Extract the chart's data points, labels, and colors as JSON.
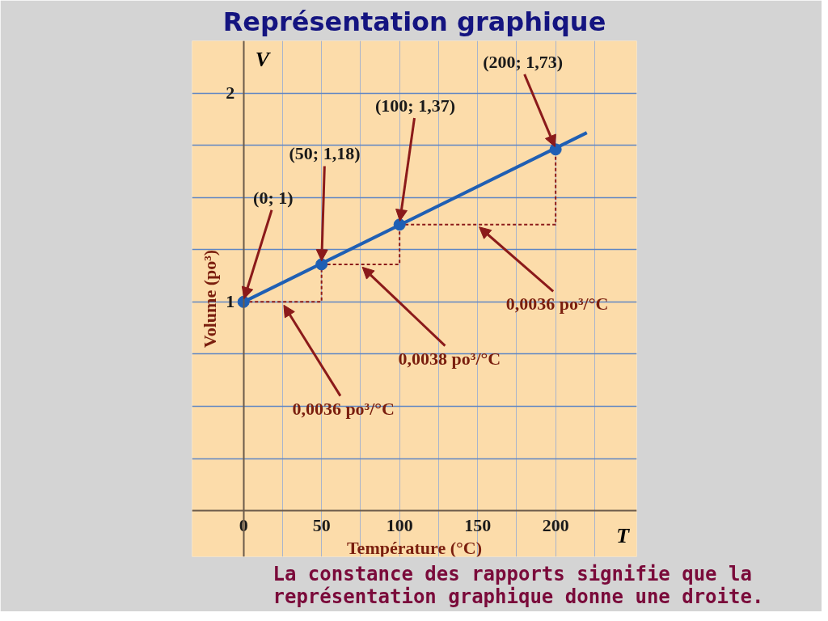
{
  "chart_data": {
    "type": "scatter",
    "title": "Représentation graphique",
    "xlabel": "Température (°C)",
    "ylabel": "Volume (po³)",
    "xlim": [
      -33,
      252
    ],
    "ylim": [
      -0.22,
      2.25
    ],
    "xticks": [
      0,
      {
        "value": 25,
        "label": null
      },
      50,
      {
        "value": 75,
        "label": null
      },
      100,
      {
        "value": 125,
        "label": null
      },
      150,
      {
        "value": 175,
        "label": null
      },
      200,
      {
        "value": 225,
        "label": null
      }
    ],
    "yticks": [
      {
        "value": 0.25,
        "label": null
      },
      {
        "value": 0.5,
        "label": null
      },
      {
        "value": 0.75,
        "label": null
      },
      1,
      {
        "value": 1.25,
        "label": null
      },
      {
        "value": 1.5,
        "label": null
      },
      {
        "value": 1.75,
        "label": null
      },
      2
    ],
    "grid": true,
    "series": [
      {
        "type": "line",
        "color": "#1f5fb4",
        "x": [
          0,
          220
        ],
        "values": [
          1,
          1.81
        ],
        "line_style": "solid",
        "marker": "none"
      },
      {
        "type": "line",
        "color": "#8b1a1a",
        "x": [
          0,
          50,
          50
        ],
        "values": [
          1,
          1,
          1.18
        ],
        "line_style": "dashed",
        "marker": "none"
      },
      {
        "type": "line",
        "color": "#8b1a1a",
        "x": [
          50,
          100,
          100
        ],
        "values": [
          1.18,
          1.18,
          1.37
        ],
        "line_style": "dashed",
        "marker": "none"
      },
      {
        "type": "line",
        "color": "#8b1a1a",
        "x": [
          100,
          200,
          200
        ],
        "values": [
          1.37,
          1.37,
          1.73
        ],
        "line_style": "dashed",
        "marker": "none"
      },
      {
        "color": "#1f5fb4",
        "x": [
          0,
          50,
          100,
          200
        ],
        "values": [
          1,
          1.18,
          1.37,
          1.73
        ],
        "marker": "circle"
      }
    ],
    "annotations": [
      {
        "text": "(0; 1)",
        "x": 0,
        "y": 1
      },
      {
        "text": "(50; 1,18)",
        "x": 50,
        "y": 1.18
      },
      {
        "text": "(100; 1,37)",
        "x": 100,
        "y": 1.37
      },
      {
        "text": "(200; 1,73)",
        "x": 200,
        "y": 1.73
      },
      {
        "text": "0,0036 po³/°C",
        "x": 25,
        "y": 1
      },
      {
        "text": "0,0038 po³/°C",
        "x": 75,
        "y": 1.18
      },
      {
        "text": "0,0036 po³/°C",
        "x": 150,
        "y": 1.37
      },
      "V",
      "T",
      "La constance des rapports signifie que la\nreprésentation graphique donne une droite."
    ]
  }
}
